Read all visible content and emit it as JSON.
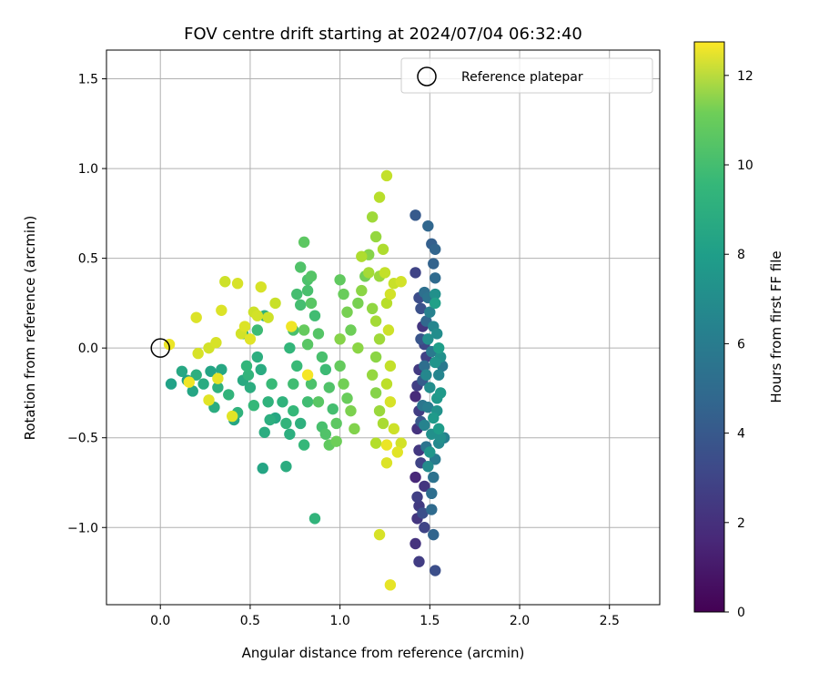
{
  "chart_data": {
    "type": "scatter",
    "title": "FOV centre drift starting at 2024/07/04 06:32:40",
    "xlabel": "Angular distance from reference (arcmin)",
    "ylabel": "Rotation from reference (arcmin)",
    "xlim": [
      -0.3,
      2.78
    ],
    "ylim": [
      -1.43,
      1.66
    ],
    "x_ticks": [
      0.0,
      0.5,
      1.0,
      1.5,
      2.0,
      2.5
    ],
    "x_tick_labels": [
      "0.0",
      "0.5",
      "1.0",
      "1.5",
      "2.0",
      "2.5"
    ],
    "y_ticks": [
      -1.0,
      -0.5,
      0.0,
      0.5,
      1.0,
      1.5
    ],
    "y_tick_labels": [
      "−1.0",
      "−0.5",
      "0.0",
      "0.5",
      "1.0",
      "1.5"
    ],
    "grid": true,
    "legend": {
      "placement": "top-right",
      "entries": [
        "Reference platepar"
      ]
    },
    "reference_point": {
      "x": 0.0,
      "y": 0.0
    },
    "colorbar": {
      "label": "Hours from first FF file",
      "range": [
        0,
        12.75
      ],
      "ticks": [
        0,
        2,
        4,
        6,
        8,
        10,
        12
      ],
      "tick_labels": [
        "0",
        "2",
        "4",
        "6",
        "8",
        "10",
        "12"
      ],
      "colormap": "viridis"
    },
    "series": [
      {
        "points": [
          [
            1.42,
            0.74,
            3.6
          ],
          [
            1.49,
            0.68,
            4.2
          ],
          [
            1.51,
            0.58,
            3.9
          ],
          [
            1.53,
            0.55,
            4.1
          ],
          [
            1.52,
            0.47,
            4.0
          ],
          [
            1.42,
            0.42,
            2.6
          ],
          [
            1.53,
            0.39,
            4.4
          ],
          [
            1.47,
            0.31,
            4.7
          ],
          [
            1.44,
            0.28,
            3.0
          ],
          [
            1.45,
            0.22,
            3.2
          ],
          [
            1.46,
            0.12,
            2.0
          ],
          [
            1.47,
            0.02,
            2.7
          ],
          [
            1.48,
            -0.05,
            2.5
          ],
          [
            1.44,
            -0.12,
            2.2
          ],
          [
            1.43,
            -0.21,
            2.4
          ],
          [
            1.42,
            -0.27,
            1.6
          ],
          [
            1.44,
            -0.35,
            2.3
          ],
          [
            1.43,
            -0.45,
            1.9
          ],
          [
            1.44,
            -0.57,
            2.1
          ],
          [
            1.45,
            -0.64,
            2.6
          ],
          [
            1.42,
            -0.72,
            1.4
          ],
          [
            1.47,
            -0.77,
            2.0
          ],
          [
            1.43,
            -0.83,
            2.4
          ],
          [
            1.44,
            -0.88,
            2.2
          ],
          [
            1.46,
            -0.92,
            3.1
          ],
          [
            1.43,
            -0.95,
            2.0
          ],
          [
            1.47,
            -1.0,
            2.6
          ],
          [
            1.42,
            -1.09,
            1.9
          ],
          [
            1.44,
            -1.19,
            2.3
          ],
          [
            1.53,
            -1.24,
            3.1
          ],
          [
            1.5,
            0.2,
            5.6
          ],
          [
            1.52,
            0.12,
            5.8
          ],
          [
            1.49,
            0.05,
            6.3
          ],
          [
            1.51,
            -0.02,
            5.2
          ],
          [
            1.53,
            -0.08,
            6.6
          ],
          [
            1.48,
            -0.15,
            5.9
          ],
          [
            1.5,
            -0.22,
            6.2
          ],
          [
            1.54,
            -0.28,
            6.8
          ],
          [
            1.49,
            -0.33,
            5.4
          ],
          [
            1.52,
            -0.39,
            6.9
          ],
          [
            1.47,
            -0.43,
            5.7
          ],
          [
            1.51,
            -0.48,
            6.4
          ],
          [
            1.55,
            -0.53,
            6.0
          ],
          [
            1.5,
            -0.58,
            6.7
          ],
          [
            1.53,
            -0.62,
            5.3
          ],
          [
            1.49,
            -0.66,
            6.1
          ],
          [
            1.56,
            -0.5,
            6.3
          ],
          [
            1.55,
            -0.45,
            7.0
          ],
          [
            1.54,
            -0.35,
            6.5
          ],
          [
            1.56,
            -0.25,
            6.9
          ],
          [
            1.55,
            -0.15,
            5.8
          ],
          [
            1.56,
            -0.05,
            6.4
          ],
          [
            1.55,
            0.0,
            7.1
          ],
          [
            1.54,
            0.08,
            6.2
          ],
          [
            1.53,
            0.25,
            7.2
          ],
          [
            1.53,
            0.3,
            6.4
          ],
          [
            1.57,
            -0.1,
            5.1
          ],
          [
            1.58,
            -0.5,
            5.5
          ],
          [
            1.52,
            -0.72,
            4.8
          ],
          [
            1.51,
            -0.81,
            4.6
          ],
          [
            1.51,
            -0.9,
            4.4
          ],
          [
            1.52,
            -1.04,
            4.1
          ],
          [
            1.48,
            -0.55,
            4.9
          ],
          [
            1.46,
            -0.32,
            5.0
          ],
          [
            1.47,
            -0.1,
            4.6
          ],
          [
            1.48,
            0.15,
            4.3
          ],
          [
            1.49,
            0.28,
            4.9
          ],
          [
            1.45,
            -0.41,
            3.5
          ],
          [
            1.46,
            -0.18,
            3.7
          ],
          [
            1.45,
            0.05,
            3.4
          ],
          [
            0.06,
            -0.2,
            7.3
          ],
          [
            0.12,
            -0.13,
            7.6
          ],
          [
            0.15,
            -0.18,
            7.2
          ],
          [
            0.18,
            -0.24,
            7.5
          ],
          [
            0.2,
            -0.15,
            8.0
          ],
          [
            0.24,
            -0.2,
            7.8
          ],
          [
            0.28,
            -0.13,
            7.4
          ],
          [
            0.3,
            -0.33,
            7.9
          ],
          [
            0.32,
            -0.22,
            8.1
          ],
          [
            0.34,
            -0.12,
            7.6
          ],
          [
            0.38,
            -0.26,
            8.3
          ],
          [
            0.41,
            -0.4,
            7.5
          ],
          [
            0.43,
            -0.36,
            8.2
          ],
          [
            0.46,
            -0.18,
            7.7
          ],
          [
            0.48,
            -0.1,
            8.4
          ],
          [
            0.5,
            -0.22,
            7.9
          ],
          [
            0.52,
            -0.32,
            8.5
          ],
          [
            0.54,
            -0.05,
            8.0
          ],
          [
            0.56,
            -0.12,
            7.8
          ],
          [
            0.57,
            -0.67,
            7.5
          ],
          [
            0.58,
            -0.47,
            7.9
          ],
          [
            0.6,
            -0.3,
            8.2
          ],
          [
            0.61,
            -0.4,
            8.0
          ],
          [
            0.62,
            -0.2,
            8.6
          ],
          [
            0.64,
            -0.39,
            7.6
          ],
          [
            0.49,
            -0.15,
            8.3
          ],
          [
            0.46,
            0.08,
            8.4
          ],
          [
            0.54,
            0.1,
            8.7
          ],
          [
            0.58,
            0.18,
            8.1
          ],
          [
            0.7,
            -0.66,
            7.9
          ],
          [
            0.68,
            -0.3,
            8.2
          ],
          [
            0.7,
            -0.42,
            8.3
          ],
          [
            0.72,
            -0.48,
            8.0
          ],
          [
            0.74,
            -0.35,
            8.5
          ],
          [
            0.74,
            -0.2,
            8.8
          ],
          [
            0.76,
            -0.1,
            8.6
          ],
          [
            0.72,
            0.0,
            8.4
          ],
          [
            0.74,
            0.1,
            9.0
          ],
          [
            0.76,
            0.3,
            8.9
          ],
          [
            0.78,
            0.45,
            9.2
          ],
          [
            0.8,
            0.59,
            9.5
          ],
          [
            0.82,
            0.38,
            9.1
          ],
          [
            0.84,
            0.25,
            9.4
          ],
          [
            0.86,
            0.18,
            8.8
          ],
          [
            0.88,
            0.08,
            9.3
          ],
          [
            0.9,
            -0.05,
            9.0
          ],
          [
            0.92,
            -0.12,
            8.7
          ],
          [
            0.94,
            -0.22,
            9.2
          ],
          [
            0.96,
            -0.34,
            8.9
          ],
          [
            0.98,
            -0.42,
            9.5
          ],
          [
            0.78,
            -0.42,
            8.1
          ],
          [
            0.8,
            -0.54,
            8.5
          ],
          [
            0.86,
            -0.95,
            8.3
          ],
          [
            0.82,
            -0.3,
            8.8
          ],
          [
            0.84,
            -0.2,
            9.1
          ],
          [
            0.88,
            -0.3,
            9.4
          ],
          [
            0.9,
            -0.44,
            9.0
          ],
          [
            0.92,
            -0.48,
            9.2
          ],
          [
            0.94,
            -0.54,
            9.6
          ],
          [
            0.98,
            -0.52,
            9.9
          ],
          [
            0.78,
            0.24,
            8.9
          ],
          [
            0.82,
            0.32,
            9.0
          ],
          [
            0.84,
            0.4,
            9.3
          ],
          [
            0.8,
            0.1,
            9.7
          ],
          [
            0.82,
            0.02,
            9.4
          ],
          [
            1.0,
            0.38,
            9.6
          ],
          [
            1.02,
            0.3,
            9.8
          ],
          [
            1.04,
            0.2,
            10.1
          ],
          [
            1.06,
            0.1,
            9.9
          ],
          [
            1.0,
            -0.1,
            9.7
          ],
          [
            1.02,
            -0.2,
            10.0
          ],
          [
            1.04,
            -0.28,
            9.8
          ],
          [
            1.06,
            -0.35,
            10.2
          ],
          [
            1.08,
            -0.45,
            10.3
          ],
          [
            1.0,
            0.05,
            10.4
          ],
          [
            1.1,
            0.25,
            10.1
          ],
          [
            1.12,
            0.32,
            10.5
          ],
          [
            1.14,
            0.4,
            10.0
          ],
          [
            1.16,
            0.52,
            10.4
          ],
          [
            1.18,
            0.73,
            10.9
          ],
          [
            1.2,
            0.62,
            10.7
          ],
          [
            1.22,
            0.84,
            11.4
          ],
          [
            1.24,
            0.55,
            11.2
          ],
          [
            1.26,
            0.96,
            11.6
          ],
          [
            1.22,
            0.4,
            10.8
          ],
          [
            1.18,
            0.22,
            10.6
          ],
          [
            1.2,
            0.15,
            11.0
          ],
          [
            1.22,
            0.05,
            10.9
          ],
          [
            1.2,
            -0.05,
            10.5
          ],
          [
            1.18,
            -0.15,
            10.7
          ],
          [
            1.2,
            -0.25,
            10.4
          ],
          [
            1.22,
            -0.35,
            10.8
          ],
          [
            1.24,
            -0.42,
            11.1
          ],
          [
            1.2,
            -0.53,
            11.3
          ],
          [
            1.26,
            -0.2,
            11.5
          ],
          [
            1.28,
            -0.1,
            11.6
          ],
          [
            1.27,
            0.1,
            11.8
          ],
          [
            1.26,
            0.25,
            11.4
          ],
          [
            1.28,
            0.3,
            11.9
          ],
          [
            1.25,
            0.42,
            11.6
          ],
          [
            1.3,
            0.36,
            11.7
          ],
          [
            1.34,
            0.37,
            11.9
          ],
          [
            1.28,
            -0.3,
            12.0
          ],
          [
            1.3,
            -0.45,
            11.8
          ],
          [
            1.26,
            -0.64,
            12.1
          ],
          [
            1.22,
            -1.04,
            12.0
          ],
          [
            1.28,
            -1.32,
            12.3
          ],
          [
            1.32,
            -0.58,
            12.2
          ],
          [
            1.34,
            -0.53,
            11.9
          ],
          [
            1.26,
            -0.54,
            12.4
          ],
          [
            0.05,
            0.02,
            12.4
          ],
          [
            0.16,
            -0.19,
            12.5
          ],
          [
            0.2,
            0.17,
            12.1
          ],
          [
            0.21,
            -0.03,
            12.0
          ],
          [
            0.27,
            0.0,
            11.9
          ],
          [
            0.27,
            -0.29,
            12.2
          ],
          [
            0.31,
            0.03,
            12.0
          ],
          [
            0.32,
            -0.17,
            12.3
          ],
          [
            0.34,
            0.21,
            12.1
          ],
          [
            0.36,
            0.37,
            11.8
          ],
          [
            0.4,
            -0.38,
            12.2
          ],
          [
            0.43,
            0.36,
            12.0
          ],
          [
            0.45,
            0.08,
            11.9
          ],
          [
            0.47,
            0.12,
            12.1
          ],
          [
            0.5,
            0.05,
            12.2
          ],
          [
            0.52,
            0.2,
            11.8
          ],
          [
            0.54,
            0.18,
            11.9
          ],
          [
            0.56,
            0.34,
            12.0
          ],
          [
            0.6,
            0.17,
            11.8
          ],
          [
            0.64,
            0.25,
            11.7
          ],
          [
            0.73,
            0.12,
            12.5
          ],
          [
            0.82,
            -0.15,
            12.6
          ],
          [
            1.12,
            0.51,
            11.2
          ],
          [
            1.16,
            0.42,
            11.0
          ],
          [
            1.1,
            0.0,
            10.5
          ]
        ]
      }
    ]
  }
}
